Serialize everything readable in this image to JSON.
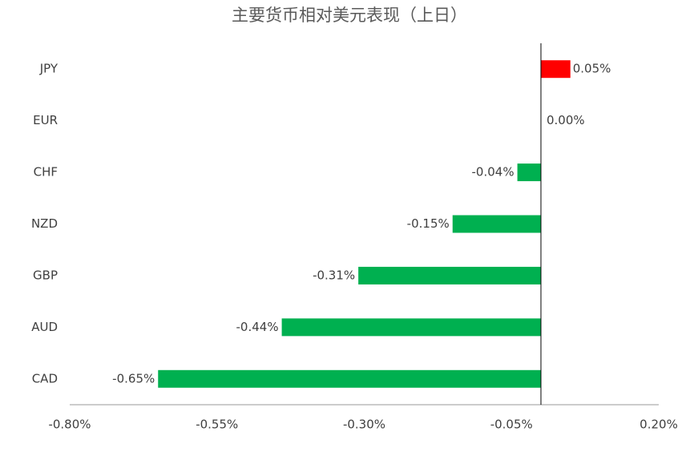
{
  "chart_data": {
    "type": "hbar",
    "title": "主要货币相对美元表现（上日）",
    "categories": [
      "JPY",
      "EUR",
      "CHF",
      "NZD",
      "GBP",
      "AUD",
      "CAD"
    ],
    "values": [
      0.05,
      0,
      -0.04,
      -0.15,
      -0.31,
      -0.44,
      -0.65
    ],
    "value_labels": [
      "0.05%",
      "0.00%",
      "-0.04%",
      "-0.15%",
      "-0.31%",
      "-0.44%",
      "-0.65%"
    ],
    "colors": [
      "#ff0000",
      "#00b050",
      "#00b050",
      "#00b050",
      "#00b050",
      "#00b050",
      "#00b050"
    ],
    "xlim": [
      -0.8,
      0.2
    ],
    "xticks": [
      {
        "value": -0.8,
        "label": "-0.80%"
      },
      {
        "value": -0.55,
        "label": "-0.55%"
      },
      {
        "value": -0.3,
        "label": "-0.30%"
      },
      {
        "value": -0.05,
        "label": "-0.05%"
      },
      {
        "value": 0.2,
        "label": "0.20%"
      }
    ]
  }
}
